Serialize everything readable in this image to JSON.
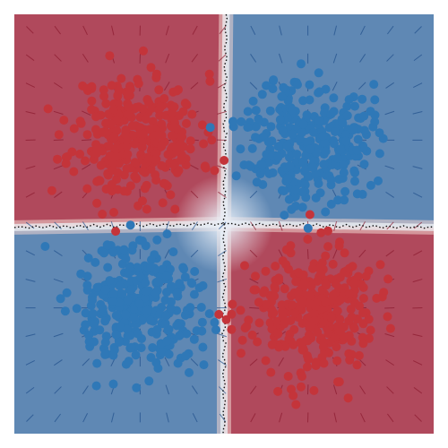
{
  "chart_data": {
    "type": "scatter",
    "xlim": [
      -3,
      3
    ],
    "ylim": [
      -3,
      3
    ],
    "grid": false,
    "legend": "none",
    "classes": [
      {
        "color": "#c4343a",
        "region_color": "#b0495c",
        "clusters": [
          {
            "center": [
              -1.25,
              1.25
            ],
            "spread": 0.45,
            "count": 320,
            "seed": 11
          },
          {
            "center": [
              1.25,
              -1.25
            ],
            "spread": 0.45,
            "count": 320,
            "seed": 23
          }
        ]
      },
      {
        "color": "#2f78b7",
        "region_color": "#5f88b4",
        "clusters": [
          {
            "center": [
              1.2,
              1.2
            ],
            "spread": 0.45,
            "count": 320,
            "seed": 37
          },
          {
            "center": [
              -1.2,
              -1.2
            ],
            "spread": 0.45,
            "count": 320,
            "seed": 51
          }
        ]
      }
    ],
    "decision_boundary": {
      "style": "dotted",
      "color": "#111111"
    },
    "vector_field": {
      "grid_step": 0.4,
      "red_quadrants": [
        "top-left",
        "bottom-right"
      ],
      "blue_quadrants": [
        "top-right",
        "bottom-left"
      ]
    }
  }
}
